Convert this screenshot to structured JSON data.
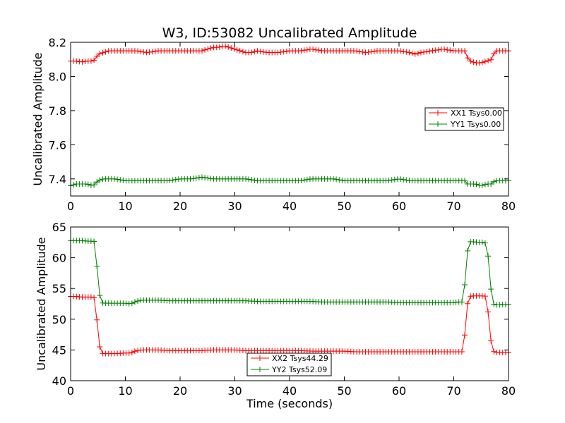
{
  "chart_data": [
    {
      "type": "line",
      "title": "W3, ID:53082 Uncalibrated Amplitude",
      "xlabel": "",
      "ylabel": "Uncalibrated Amplitude",
      "xlim": [
        0,
        80
      ],
      "ylim": [
        7.3,
        8.2
      ],
      "x_ticks": [
        "0",
        "10",
        "20",
        "30",
        "40",
        "50",
        "60",
        "70",
        "80"
      ],
      "y_ticks": [
        "7.4",
        "7.6",
        "7.8",
        "8.0",
        "8.2"
      ],
      "legend_position": "center-right",
      "marker": "+",
      "series": [
        {
          "name": "XX1 Tsys0.00",
          "color": "#ff0000",
          "x": [
            0,
            1,
            2,
            3,
            4,
            4.5,
            5,
            6,
            7,
            8,
            10,
            12,
            14,
            16,
            18,
            20,
            22,
            24,
            25,
            26,
            27,
            28,
            29,
            30,
            31,
            32,
            33,
            34,
            36,
            38,
            40,
            42,
            44,
            46,
            48,
            50,
            52,
            54,
            56,
            58,
            60,
            62,
            63,
            64,
            66,
            68,
            70,
            71,
            72,
            72.5,
            73,
            74,
            75,
            76,
            77,
            77.5,
            78,
            79,
            80
          ],
          "values": [
            8.09,
            8.09,
            8.085,
            8.09,
            8.09,
            8.1,
            8.13,
            8.14,
            8.15,
            8.15,
            8.15,
            8.15,
            8.14,
            8.15,
            8.15,
            8.15,
            8.15,
            8.15,
            8.16,
            8.17,
            8.17,
            8.18,
            8.17,
            8.16,
            8.15,
            8.14,
            8.14,
            8.15,
            8.14,
            8.14,
            8.15,
            8.15,
            8.16,
            8.15,
            8.15,
            8.15,
            8.15,
            8.14,
            8.15,
            8.15,
            8.15,
            8.14,
            8.13,
            8.14,
            8.15,
            8.16,
            8.15,
            8.15,
            8.15,
            8.11,
            8.09,
            8.08,
            8.08,
            8.09,
            8.1,
            8.15,
            8.15,
            8.15,
            8.15
          ]
        },
        {
          "name": "YY1 Tsys0.00",
          "color": "#008000",
          "x": [
            0,
            1,
            2,
            3,
            4,
            4.5,
            5,
            6,
            7,
            8,
            10,
            12,
            14,
            16,
            18,
            20,
            22,
            24,
            26,
            28,
            30,
            32,
            34,
            36,
            38,
            40,
            42,
            44,
            46,
            48,
            50,
            52,
            54,
            56,
            58,
            60,
            62,
            64,
            66,
            68,
            70,
            71,
            72,
            72.5,
            73,
            74,
            75,
            76,
            77,
            77.5,
            78,
            79,
            80
          ],
          "values": [
            7.36,
            7.37,
            7.37,
            7.37,
            7.36,
            7.37,
            7.39,
            7.4,
            7.4,
            7.4,
            7.39,
            7.39,
            7.39,
            7.39,
            7.39,
            7.4,
            7.4,
            7.41,
            7.4,
            7.4,
            7.4,
            7.4,
            7.39,
            7.39,
            7.39,
            7.39,
            7.39,
            7.4,
            7.4,
            7.4,
            7.39,
            7.39,
            7.39,
            7.39,
            7.39,
            7.4,
            7.39,
            7.39,
            7.39,
            7.39,
            7.39,
            7.39,
            7.39,
            7.37,
            7.37,
            7.37,
            7.36,
            7.37,
            7.37,
            7.39,
            7.39,
            7.39,
            7.39
          ]
        }
      ]
    },
    {
      "type": "line",
      "title": "",
      "xlabel": "Time (seconds)",
      "ylabel": "Uncalibrated Amplitude",
      "xlim": [
        0,
        80
      ],
      "ylim": [
        40,
        65
      ],
      "x_ticks": [
        "0",
        "10",
        "20",
        "30",
        "40",
        "50",
        "60",
        "70",
        "80"
      ],
      "y_ticks": [
        "40",
        "45",
        "50",
        "55",
        "60",
        "65"
      ],
      "legend_position": "lower-center",
      "marker": "+",
      "series": [
        {
          "name": "XX2 Tsys44.29",
          "color": "#ff0000",
          "x": [
            0,
            1,
            2,
            3,
            4,
            4.5,
            5,
            5.5,
            6,
            8,
            10,
            11,
            12,
            13,
            14,
            16,
            18,
            20,
            22,
            24,
            26,
            28,
            30,
            32,
            34,
            36,
            38,
            40,
            42,
            44,
            46,
            48,
            50,
            52,
            54,
            56,
            58,
            60,
            62,
            64,
            66,
            68,
            70,
            71,
            71.8,
            72.3,
            72.8,
            73.5,
            74.5,
            75.5,
            76,
            76.5,
            77,
            78,
            79,
            80
          ],
          "values": [
            53.7,
            53.7,
            53.6,
            53.6,
            53.6,
            53.5,
            47.5,
            44.5,
            44.4,
            44.4,
            44.5,
            44.5,
            44.9,
            45,
            45,
            45,
            44.9,
            44.9,
            44.9,
            44.9,
            45,
            45,
            45,
            44.9,
            44.9,
            44.9,
            44.9,
            44.9,
            44.9,
            44.8,
            44.8,
            44.8,
            44.8,
            44.7,
            44.7,
            44.7,
            44.7,
            44.7,
            44.7,
            44.7,
            44.7,
            44.7,
            44.7,
            44.7,
            44.7,
            51.5,
            53.7,
            53.8,
            53.8,
            53.8,
            53.7,
            49,
            44.8,
            44.6,
            44.6,
            44.6
          ]
        },
        {
          "name": "YY2 Tsys52.09",
          "color": "#008000",
          "x": [
            0,
            1,
            2,
            3,
            4,
            4.5,
            5,
            5.5,
            6,
            8,
            10,
            11,
            12,
            13,
            14,
            16,
            18,
            20,
            22,
            24,
            26,
            28,
            30,
            32,
            34,
            36,
            38,
            40,
            42,
            44,
            46,
            48,
            50,
            52,
            54,
            56,
            58,
            60,
            62,
            64,
            66,
            68,
            70,
            71,
            71.8,
            72.3,
            72.8,
            73.5,
            74.5,
            75.5,
            76,
            76.5,
            77,
            78,
            79,
            80
          ],
          "values": [
            62.8,
            62.8,
            62.8,
            62.7,
            62.7,
            62.6,
            56,
            52.8,
            52.6,
            52.6,
            52.6,
            52.5,
            52.9,
            53.1,
            53.1,
            53.1,
            53,
            53,
            53,
            53,
            53,
            53,
            53,
            53,
            52.9,
            52.9,
            52.9,
            52.9,
            52.9,
            52.9,
            52.8,
            52.8,
            52.8,
            52.8,
            52.8,
            52.8,
            52.8,
            52.7,
            52.7,
            52.7,
            52.7,
            52.7,
            52.7,
            52.8,
            52.8,
            59.8,
            62.6,
            62.6,
            62.5,
            62.5,
            62.3,
            58.5,
            52.5,
            52.3,
            52.4,
            52.4
          ]
        }
      ]
    }
  ]
}
